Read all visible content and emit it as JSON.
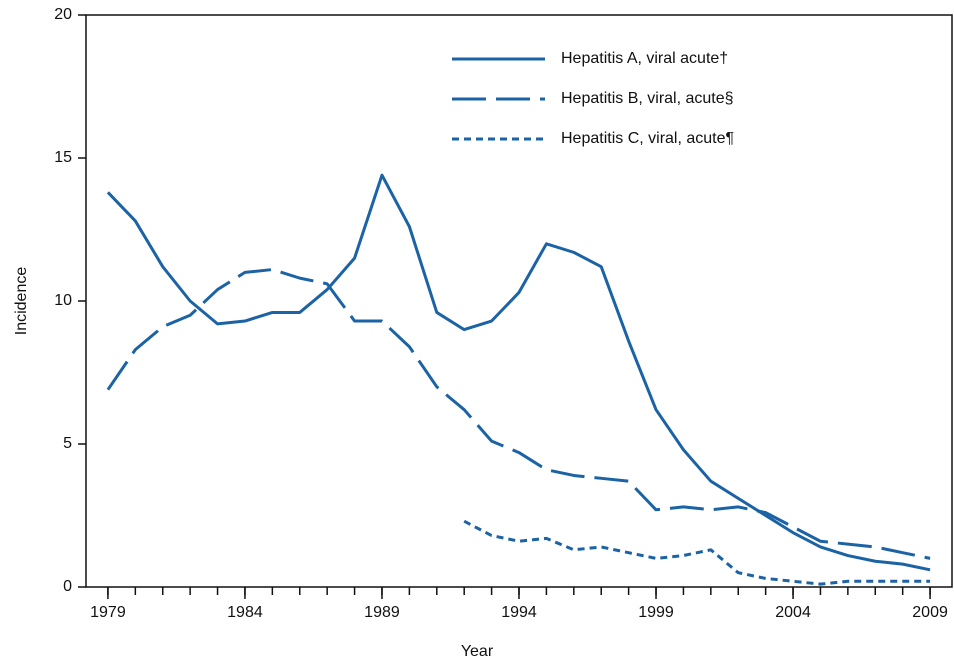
{
  "chart_data": {
    "type": "line",
    "xlabel": "Year",
    "ylabel": "Incidence",
    "x": [
      1979,
      1980,
      1981,
      1982,
      1983,
      1984,
      1985,
      1986,
      1987,
      1988,
      1989,
      1990,
      1991,
      1992,
      1993,
      1994,
      1995,
      1996,
      1997,
      1998,
      1999,
      2000,
      2001,
      2002,
      2003,
      2004,
      2005,
      2006,
      2007,
      2008,
      2009
    ],
    "series": [
      {
        "name": "Hepatitis A, viral acute†",
        "color": "#1b63a5",
        "dash": "solid",
        "values": [
          13.8,
          12.8,
          11.2,
          10.0,
          9.2,
          9.3,
          9.6,
          9.6,
          10.4,
          11.5,
          14.4,
          12.6,
          9.6,
          9.0,
          9.3,
          10.3,
          12.0,
          11.7,
          11.2,
          8.6,
          6.2,
          4.8,
          3.7,
          3.1,
          2.5,
          1.9,
          1.4,
          1.1,
          0.9,
          0.8,
          0.6
        ]
      },
      {
        "name": "Hepatitis B, viral, acute§",
        "color": "#1b63a5",
        "dash": "dashed",
        "values": [
          6.9,
          8.3,
          9.1,
          9.5,
          10.4,
          11.0,
          11.1,
          10.8,
          10.6,
          9.3,
          9.3,
          8.4,
          7.0,
          6.2,
          5.1,
          4.7,
          4.1,
          3.9,
          3.8,
          3.7,
          2.7,
          2.8,
          2.7,
          2.8,
          2.6,
          2.1,
          1.6,
          1.5,
          1.4,
          1.2,
          1.0
        ]
      },
      {
        "name": "Hepatitis C, viral, acute¶",
        "color": "#1b63a5",
        "dash": "dotted",
        "values": [
          null,
          null,
          null,
          null,
          null,
          null,
          null,
          null,
          null,
          null,
          null,
          null,
          null,
          2.3,
          1.8,
          1.6,
          1.7,
          1.3,
          1.4,
          1.2,
          1.0,
          1.1,
          1.3,
          0.5,
          0.3,
          0.2,
          0.1,
          0.2,
          0.2,
          0.2,
          0.2
        ]
      }
    ],
    "xlim": [
      1978.2,
      2009.8
    ],
    "xticks": [
      1979,
      1984,
      1989,
      1994,
      1999,
      2004,
      2009
    ],
    "ylim": [
      0,
      20
    ],
    "yticks": [
      0,
      5,
      10,
      15,
      20
    ],
    "legend": "top-right"
  }
}
